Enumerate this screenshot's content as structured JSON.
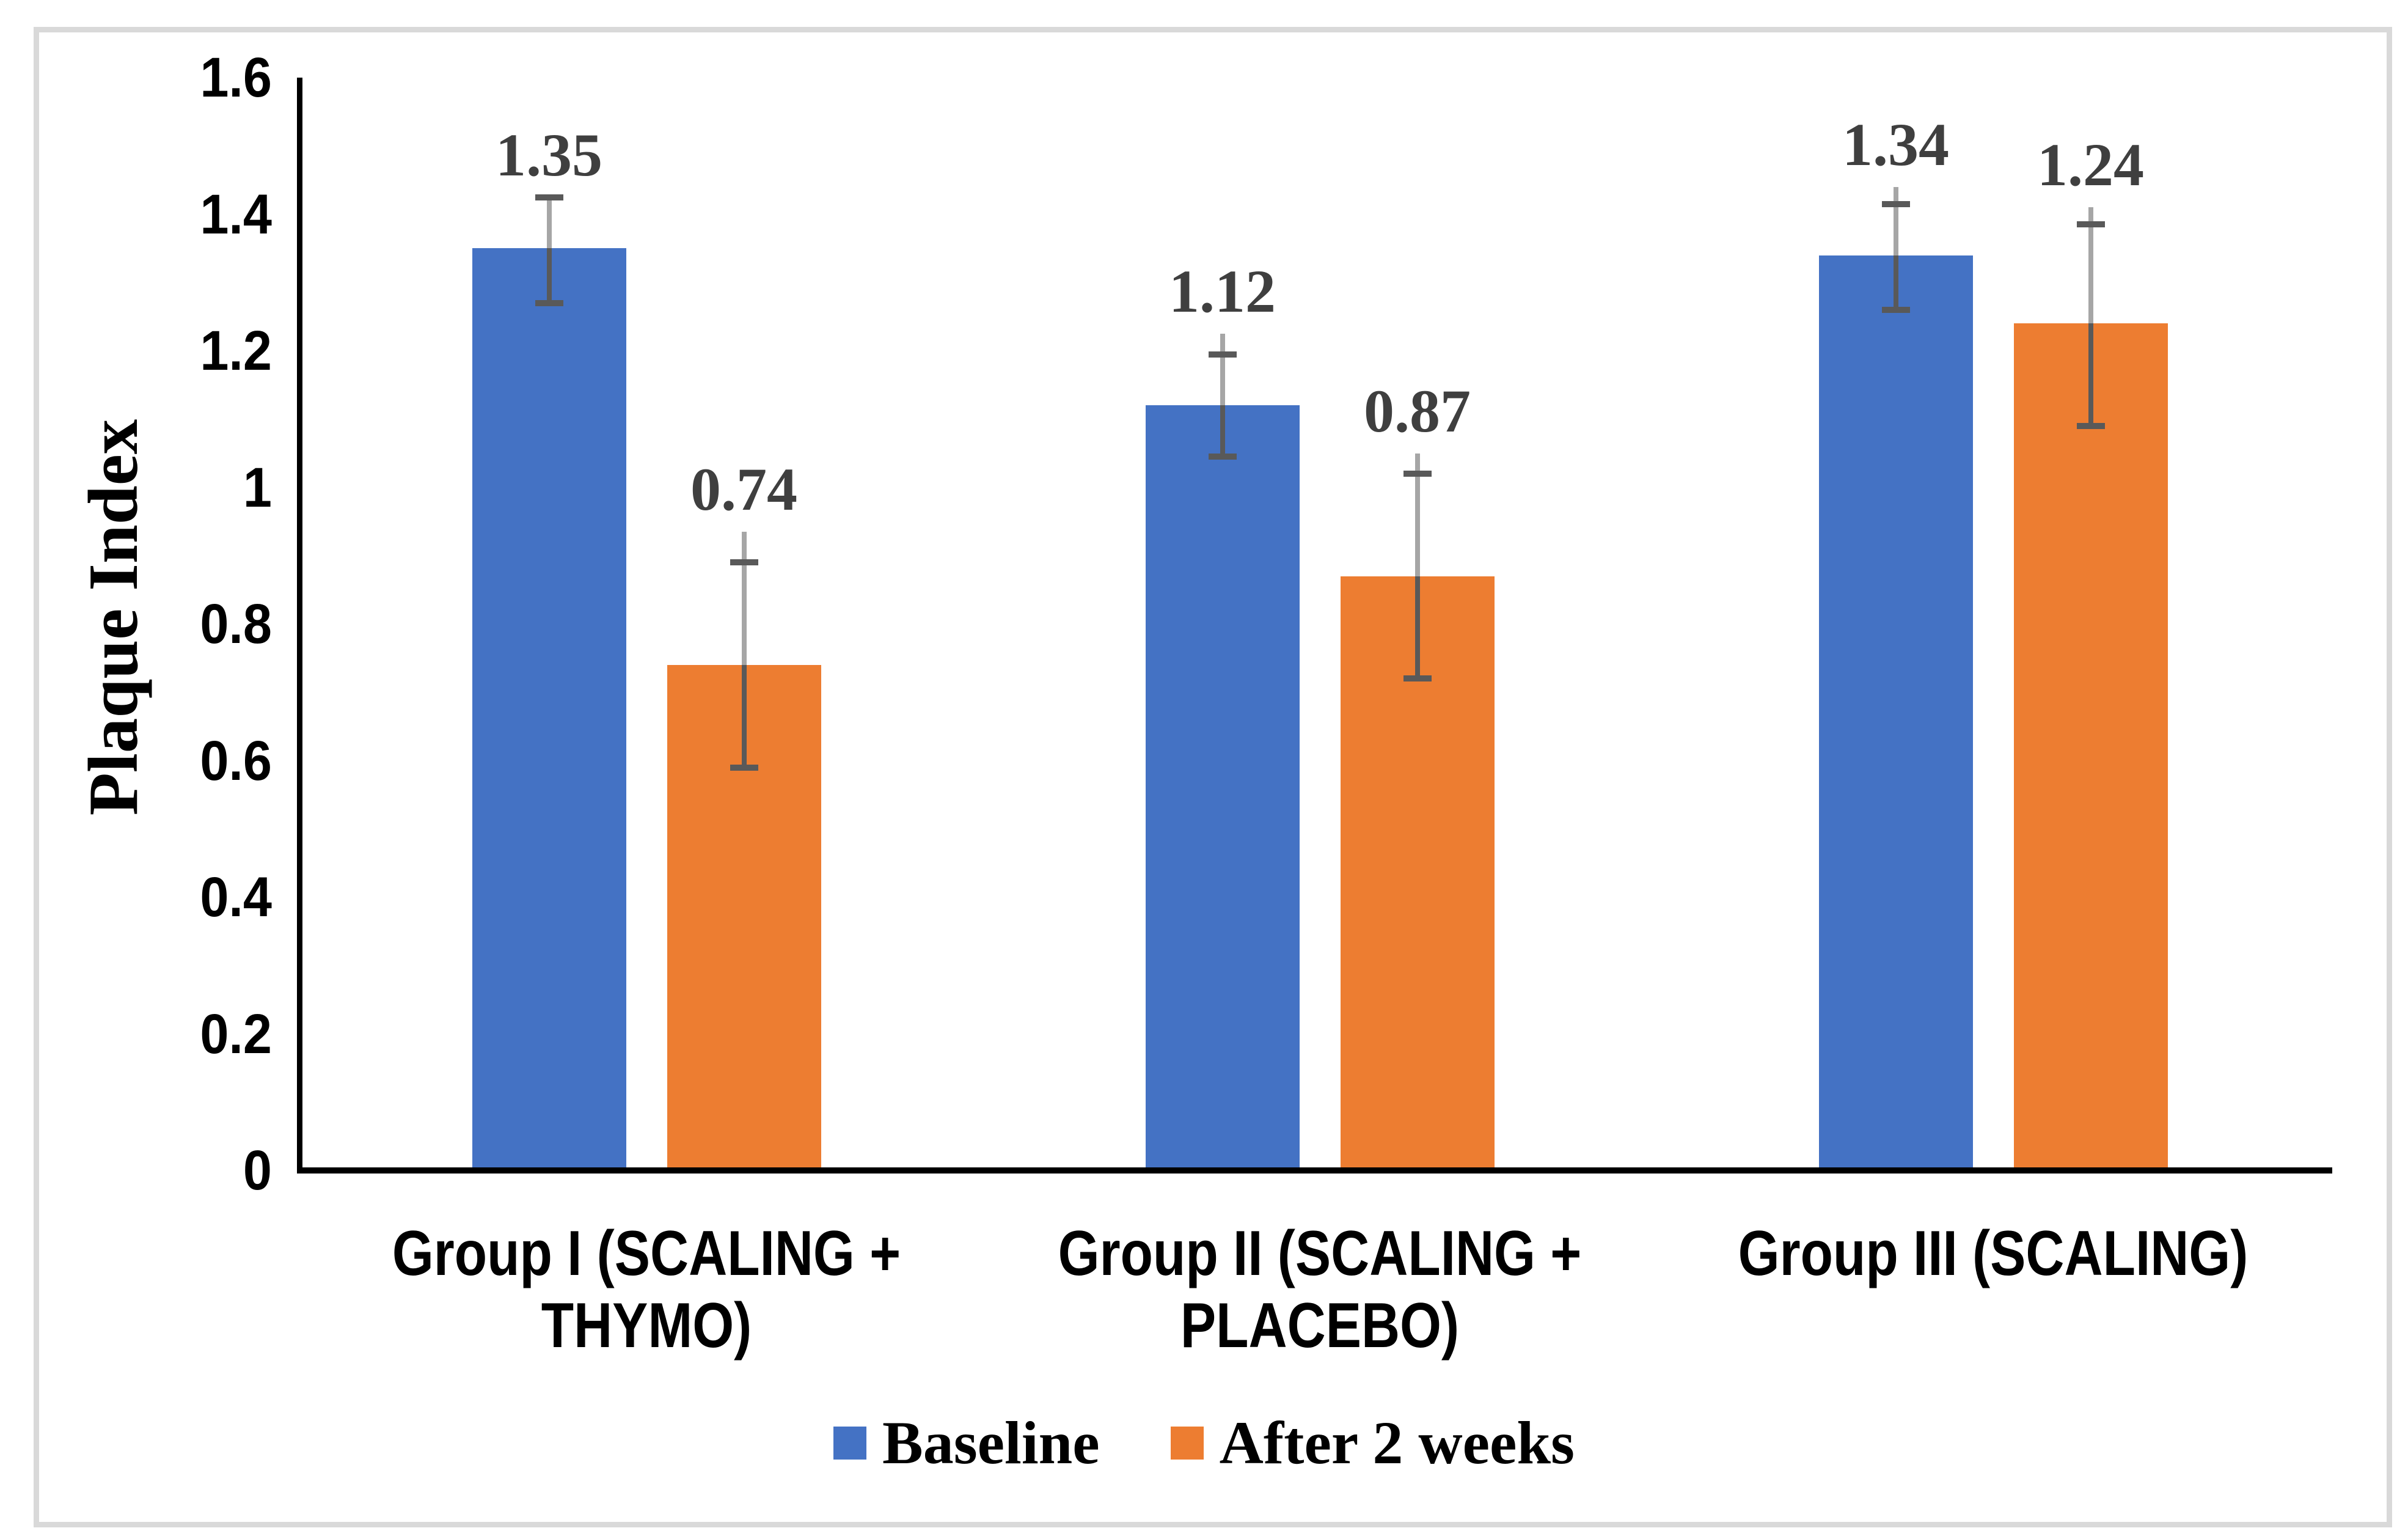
{
  "chart_data": {
    "type": "bar",
    "title": "",
    "xlabel": "",
    "ylabel": "Plaque Index",
    "ylim": [
      0,
      1.6
    ],
    "y_tick_step": 0.2,
    "y_tick_labels": [
      "1.6",
      "1.4",
      "1.2",
      "1",
      "0.8",
      "0.6",
      "0.4",
      "0.2",
      "0"
    ],
    "y_tick_values": [
      1.6,
      1.4,
      1.2,
      1,
      0.8,
      0.6,
      0.4,
      0.2,
      0
    ],
    "grid": false,
    "legend_position": "bottom",
    "categories": [
      "Group I (SCALING + THYMO)",
      "Group II (SCALING + PLACEBO)",
      "Group III (SCALING)"
    ],
    "category_label_lines": [
      [
        "Group I (SCALING +",
        "THYMO)"
      ],
      [
        "Group II (SCALING +",
        "PLACEBO)"
      ],
      [
        "Group III (SCALING)"
      ]
    ],
    "series": [
      {
        "name": "Baseline",
        "color": "#4472C4",
        "values": [
          1.35,
          1.12,
          1.34
        ],
        "data_labels": [
          "1.35",
          "1.12",
          "1.34"
        ],
        "error_bars": {
          "cap_upper": [
            1.425,
            1.195,
            1.415
          ],
          "cap_lower": [
            1.27,
            1.045,
            1.26
          ],
          "line_top": [
            1.425,
            1.225,
            1.44
          ]
        }
      },
      {
        "name": "After 2 weeks",
        "color": "#ED7D31",
        "values": [
          0.74,
          0.87,
          1.24
        ],
        "data_labels": [
          "0.74",
          "0.87",
          "1.24"
        ],
        "error_bars": {
          "cap_upper": [
            0.89,
            1.02,
            1.385
          ],
          "cap_lower": [
            0.59,
            0.72,
            1.09
          ],
          "line_top": [
            0.935,
            1.05,
            1.41
          ]
        }
      }
    ],
    "colors": {
      "error_bar_light": "#A6A6A6",
      "error_bar_dark": "#595959",
      "data_label": "#3F3F3F",
      "axis": "#000000",
      "frame_border": "#D9D9D9",
      "background": "#FFFFFF"
    }
  },
  "legend": {
    "entries": [
      {
        "label": "Baseline",
        "color": "#4472C4"
      },
      {
        "label": "After 2 weeks",
        "color": "#ED7D31"
      }
    ]
  }
}
